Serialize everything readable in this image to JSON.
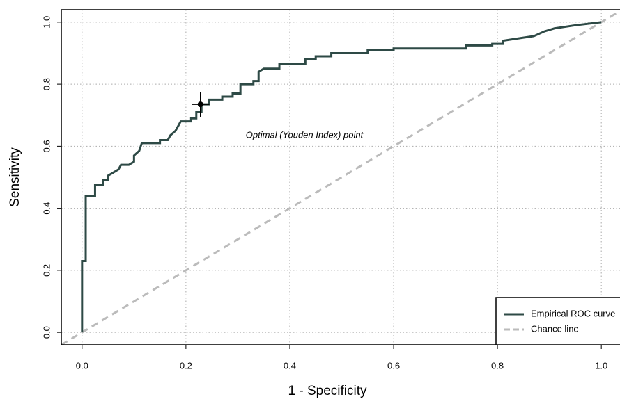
{
  "chart_data": {
    "type": "line",
    "x_label": "1 - Specificity",
    "y_label": "Sensitivity",
    "xlim": [
      -0.04,
      1.036
    ],
    "ylim": [
      -0.04,
      1.04
    ],
    "xticks": [
      {
        "value": 0,
        "label": "0.0"
      },
      0.2,
      0.4,
      0.6,
      0.8,
      {
        "value": 1,
        "label": "1.0"
      }
    ],
    "yticks": [
      {
        "value": 0,
        "label": "0.0"
      },
      0.2,
      0.4,
      0.6,
      0.8,
      {
        "value": 1,
        "label": "1.0"
      }
    ],
    "grid": true,
    "legend": "bottom right",
    "series": [
      {
        "name": "Empirical ROC curve",
        "color": "#2e4a46",
        "step": true,
        "x": [
          0,
          0,
          0.007,
          0.007,
          0.025,
          0.025,
          0.04,
          0.04,
          0.05,
          0.05,
          0.06,
          0.07,
          0.075,
          0.09,
          0.1,
          0.1,
          0.11,
          0.115,
          0.15,
          0.15,
          0.165,
          0.17,
          0.18,
          0.185,
          0.19,
          0.21,
          0.21,
          0.22,
          0.22,
          0.23,
          0.23,
          0.245,
          0.245,
          0.27,
          0.27,
          0.29,
          0.29,
          0.305,
          0.305,
          0.33,
          0.33,
          0.34,
          0.34,
          0.35,
          0.38,
          0.38,
          0.43,
          0.43,
          0.45,
          0.45,
          0.48,
          0.48,
          0.55,
          0.55,
          0.6,
          0.6,
          0.74,
          0.74,
          0.79,
          0.79,
          0.81,
          0.81,
          0.83,
          0.85,
          0.87,
          0.89,
          0.91,
          0.95,
          1
        ],
        "values": [
          0,
          0.23,
          0.23,
          0.44,
          0.44,
          0.475,
          0.475,
          0.49,
          0.49,
          0.505,
          0.515,
          0.525,
          0.54,
          0.54,
          0.55,
          0.57,
          0.585,
          0.61,
          0.61,
          0.62,
          0.62,
          0.635,
          0.65,
          0.665,
          0.68,
          0.68,
          0.69,
          0.69,
          0.71,
          0.71,
          0.735,
          0.735,
          0.75,
          0.75,
          0.76,
          0.76,
          0.77,
          0.77,
          0.8,
          0.8,
          0.81,
          0.81,
          0.84,
          0.85,
          0.85,
          0.865,
          0.865,
          0.88,
          0.88,
          0.89,
          0.89,
          0.9,
          0.9,
          0.91,
          0.91,
          0.915,
          0.915,
          0.925,
          0.925,
          0.93,
          0.93,
          0.94,
          0.945,
          0.95,
          0.955,
          0.97,
          0.98,
          0.99,
          1
        ]
      },
      {
        "name": "Chance line",
        "color": "#bbbbbb",
        "dashed": true,
        "x": [
          -0.04,
          1.036
        ],
        "values": [
          -0.04,
          1.036
        ]
      }
    ],
    "optimal_point": {
      "label": "Optimal (Youden Index) point",
      "x": 0.228,
      "y": 0.735,
      "x_error": 0.017,
      "y_error": 0.04,
      "color": "#000000"
    }
  }
}
